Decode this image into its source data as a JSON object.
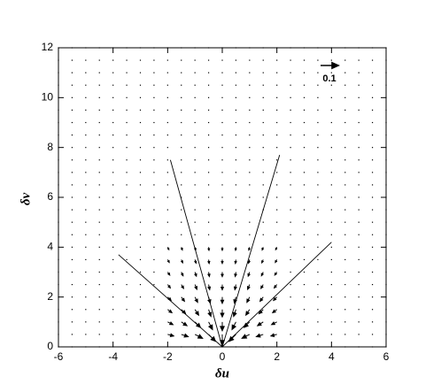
{
  "chart_data": {
    "type": "quiver",
    "x_label": "δu",
    "y_label": "δv",
    "xlim": [
      -6,
      6
    ],
    "ylim": [
      0,
      12
    ],
    "xticks": [
      -6,
      -4,
      -2,
      0,
      2,
      4,
      6
    ],
    "yticks": [
      0,
      2,
      4,
      6,
      8,
      10,
      12
    ],
    "color": "#000000",
    "reference_vector": 0.1,
    "grid_x": [
      -6,
      -5.5,
      -5,
      -4.5,
      -4,
      -3.5,
      -3,
      -2.5,
      -2,
      -1.5,
      -1,
      -0.5,
      0,
      0.5,
      1,
      1.5,
      2,
      2.5,
      3,
      3.5,
      4,
      4.5,
      5,
      5.5,
      6
    ],
    "grid_y": [
      0,
      0.5,
      1,
      1.5,
      2,
      2.5,
      3,
      3.5,
      4,
      4.5,
      5,
      5.5,
      6,
      6.5,
      7,
      7.5,
      8,
      8.5,
      9,
      9.5,
      10,
      10.5,
      11,
      11.5,
      12
    ],
    "arrows": {
      "x": [
        -2,
        -1.5,
        -1,
        -0.5,
        0,
        0.5,
        1,
        1.5,
        2,
        -2,
        -1.5,
        -1,
        -0.5,
        0,
        0.5,
        1,
        1.5,
        2,
        -2,
        -1.5,
        -1,
        -0.5,
        0,
        0.5,
        1,
        1.5,
        2,
        -2,
        -1.5,
        -1,
        -0.5,
        0,
        0.5,
        1,
        1.5,
        2,
        -2,
        -1.5,
        -1,
        -0.5,
        0,
        0.5,
        1,
        1.5,
        2,
        -2,
        -1.5,
        -1,
        -0.5,
        0,
        0.5,
        1,
        1.5,
        2,
        -2,
        -1.5,
        -1,
        -0.5,
        0,
        0.5,
        1,
        1.5,
        2,
        -2,
        -1.5,
        -1,
        -0.5,
        0,
        0.5,
        1,
        1.5,
        2
      ],
      "y": [
        0.5,
        0.5,
        0.5,
        0.5,
        0.5,
        0.5,
        0.5,
        0.5,
        0.5,
        1,
        1,
        1,
        1,
        1,
        1,
        1,
        1,
        1,
        1.5,
        1.5,
        1.5,
        1.5,
        1.5,
        1.5,
        1.5,
        1.5,
        1.5,
        2,
        2,
        2,
        2,
        2,
        2,
        2,
        2,
        2,
        2.5,
        2.5,
        2.5,
        2.5,
        2.5,
        2.5,
        2.5,
        2.5,
        2.5,
        3,
        3,
        3,
        3,
        3,
        3,
        3,
        3,
        3,
        3.5,
        3.5,
        3.5,
        3.5,
        3.5,
        3.5,
        3.5,
        3.5,
        3.5,
        4,
        4,
        4,
        4,
        4,
        4,
        4,
        4,
        4
      ],
      "u": [
        0.034,
        0.039,
        0.043,
        0.039,
        0,
        -0.039,
        -0.043,
        -0.039,
        -0.034,
        0.03,
        0.032,
        0.031,
        0.022,
        0,
        -0.022,
        -0.031,
        -0.032,
        -0.03,
        0.024,
        0.024,
        0.021,
        0.013,
        0,
        -0.013,
        -0.021,
        -0.024,
        -0.024,
        0.019,
        0.018,
        0.015,
        0.009,
        0,
        -0.009,
        -0.015,
        -0.018,
        -0.019,
        0.015,
        0.013,
        0.011,
        0.006,
        0,
        -0.006,
        -0.011,
        -0.013,
        -0.015,
        0.012,
        0.01,
        0.008,
        0.004,
        0,
        -0.004,
        -0.008,
        -0.01,
        -0.012,
        0.009,
        0.008,
        0.006,
        0.003,
        0,
        -0.003,
        -0.006,
        -0.008,
        -0.009,
        0.007,
        0.006,
        0.004,
        0.002,
        0,
        -0.002,
        -0.004,
        -0.006,
        -0.007
      ],
      "v": [
        -0.009,
        -0.013,
        -0.022,
        -0.039,
        -0.059,
        -0.039,
        -0.022,
        -0.013,
        -0.009,
        -0.015,
        -0.021,
        -0.031,
        -0.043,
        -0.05,
        -0.043,
        -0.031,
        -0.021,
        -0.015,
        -0.018,
        -0.024,
        -0.032,
        -0.039,
        -0.042,
        -0.039,
        -0.032,
        -0.024,
        -0.018,
        -0.019,
        -0.024,
        -0.03,
        -0.034,
        -0.036,
        -0.034,
        -0.03,
        -0.024,
        -0.019,
        -0.019,
        -0.022,
        -0.027,
        -0.029,
        -0.03,
        -0.029,
        -0.027,
        -0.022,
        -0.019,
        -0.017,
        -0.021,
        -0.023,
        -0.025,
        -0.026,
        -0.025,
        -0.023,
        -0.021,
        -0.017,
        -0.016,
        -0.018,
        -0.02,
        -0.022,
        -0.022,
        -0.022,
        -0.02,
        -0.018,
        -0.016,
        -0.014,
        -0.016,
        -0.017,
        -0.018,
        -0.018,
        -0.018,
        -0.017,
        -0.016,
        -0.014
      ]
    },
    "lines": [
      {
        "x": [
          0,
          -3.8
        ],
        "y": [
          0,
          3.7
        ]
      },
      {
        "x": [
          0,
          -1.9
        ],
        "y": [
          0,
          7.5
        ]
      },
      {
        "x": [
          0,
          2.1
        ],
        "y": [
          0,
          7.7
        ]
      },
      {
        "x": [
          0,
          4.0
        ],
        "y": [
          0,
          4.2
        ]
      }
    ]
  }
}
